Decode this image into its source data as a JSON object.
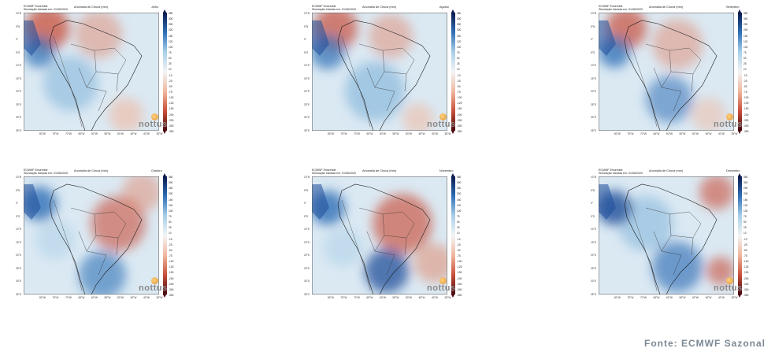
{
  "common": {
    "model": "ECMWF Ensemble",
    "simulation": "Simulação iniciada em: 01/06/2020",
    "title": "Anomalia de Chuva (mm)",
    "logo": "nottus",
    "lat_labels": [
      "10°N",
      "5°N",
      "0°",
      "5°S",
      "10°S",
      "15°S",
      "20°S",
      "25°S",
      "30°S",
      "35°S"
    ],
    "lon_labels": [
      "80°W",
      "75°W",
      "70°W",
      "65°W",
      "60°W",
      "55°W",
      "50°W",
      "45°W",
      "40°W",
      "35°W"
    ],
    "colorbar_labels": [
      "350",
      "300",
      "250",
      "200",
      "150",
      "120",
      "100",
      "75",
      "50",
      "25",
      "10",
      "-10",
      "-25",
      "-50",
      "-75",
      "-100",
      "-125",
      "-150",
      "-200",
      "-250",
      "-300",
      "-350"
    ],
    "colors": {
      "wet_dark": "#0b1a4d",
      "wet": "#2f6fb6",
      "wet_light": "#a9cfe8",
      "neutral": "#f4f4f4",
      "dry_light": "#f0b8a0",
      "dry": "#c9503a",
      "dry_dark": "#4a0710"
    }
  },
  "panels": [
    {
      "month": "Julho"
    },
    {
      "month": "Agosto"
    },
    {
      "month": "Setembro"
    },
    {
      "month": "Outubro"
    },
    {
      "month": "Novembro"
    },
    {
      "month": "Dezembro"
    }
  ],
  "footer": {
    "source": "Fonte: ECMWF  Sazonal"
  }
}
